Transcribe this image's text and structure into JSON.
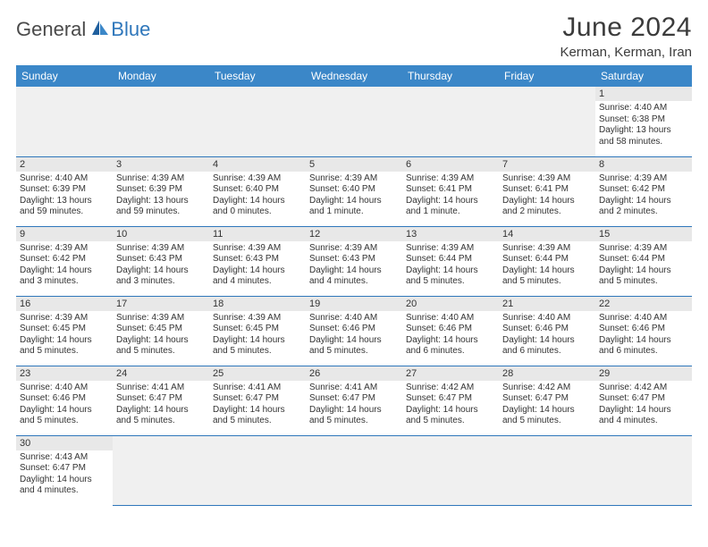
{
  "brand": {
    "general": "General",
    "blue": "Blue"
  },
  "title": "June 2024",
  "location": "Kerman, Kerman, Iran",
  "colors": {
    "header_bg": "#3b87c8",
    "header_text": "#ffffff",
    "row_divider": "#2f77bb",
    "daynum_bg": "#e8e8e8",
    "empty_bg": "#f0f0f0",
    "logo_blue": "#2f77bb",
    "text": "#333333"
  },
  "weekdays": [
    "Sunday",
    "Monday",
    "Tuesday",
    "Wednesday",
    "Thursday",
    "Friday",
    "Saturday"
  ],
  "weeks": [
    [
      null,
      null,
      null,
      null,
      null,
      null,
      {
        "n": "1",
        "sr": "Sunrise: 4:40 AM",
        "ss": "Sunset: 6:38 PM",
        "d1": "Daylight: 13 hours",
        "d2": "and 58 minutes."
      }
    ],
    [
      {
        "n": "2",
        "sr": "Sunrise: 4:40 AM",
        "ss": "Sunset: 6:39 PM",
        "d1": "Daylight: 13 hours",
        "d2": "and 59 minutes."
      },
      {
        "n": "3",
        "sr": "Sunrise: 4:39 AM",
        "ss": "Sunset: 6:39 PM",
        "d1": "Daylight: 13 hours",
        "d2": "and 59 minutes."
      },
      {
        "n": "4",
        "sr": "Sunrise: 4:39 AM",
        "ss": "Sunset: 6:40 PM",
        "d1": "Daylight: 14 hours",
        "d2": "and 0 minutes."
      },
      {
        "n": "5",
        "sr": "Sunrise: 4:39 AM",
        "ss": "Sunset: 6:40 PM",
        "d1": "Daylight: 14 hours",
        "d2": "and 1 minute."
      },
      {
        "n": "6",
        "sr": "Sunrise: 4:39 AM",
        "ss": "Sunset: 6:41 PM",
        "d1": "Daylight: 14 hours",
        "d2": "and 1 minute."
      },
      {
        "n": "7",
        "sr": "Sunrise: 4:39 AM",
        "ss": "Sunset: 6:41 PM",
        "d1": "Daylight: 14 hours",
        "d2": "and 2 minutes."
      },
      {
        "n": "8",
        "sr": "Sunrise: 4:39 AM",
        "ss": "Sunset: 6:42 PM",
        "d1": "Daylight: 14 hours",
        "d2": "and 2 minutes."
      }
    ],
    [
      {
        "n": "9",
        "sr": "Sunrise: 4:39 AM",
        "ss": "Sunset: 6:42 PM",
        "d1": "Daylight: 14 hours",
        "d2": "and 3 minutes."
      },
      {
        "n": "10",
        "sr": "Sunrise: 4:39 AM",
        "ss": "Sunset: 6:43 PM",
        "d1": "Daylight: 14 hours",
        "d2": "and 3 minutes."
      },
      {
        "n": "11",
        "sr": "Sunrise: 4:39 AM",
        "ss": "Sunset: 6:43 PM",
        "d1": "Daylight: 14 hours",
        "d2": "and 4 minutes."
      },
      {
        "n": "12",
        "sr": "Sunrise: 4:39 AM",
        "ss": "Sunset: 6:43 PM",
        "d1": "Daylight: 14 hours",
        "d2": "and 4 minutes."
      },
      {
        "n": "13",
        "sr": "Sunrise: 4:39 AM",
        "ss": "Sunset: 6:44 PM",
        "d1": "Daylight: 14 hours",
        "d2": "and 5 minutes."
      },
      {
        "n": "14",
        "sr": "Sunrise: 4:39 AM",
        "ss": "Sunset: 6:44 PM",
        "d1": "Daylight: 14 hours",
        "d2": "and 5 minutes."
      },
      {
        "n": "15",
        "sr": "Sunrise: 4:39 AM",
        "ss": "Sunset: 6:44 PM",
        "d1": "Daylight: 14 hours",
        "d2": "and 5 minutes."
      }
    ],
    [
      {
        "n": "16",
        "sr": "Sunrise: 4:39 AM",
        "ss": "Sunset: 6:45 PM",
        "d1": "Daylight: 14 hours",
        "d2": "and 5 minutes."
      },
      {
        "n": "17",
        "sr": "Sunrise: 4:39 AM",
        "ss": "Sunset: 6:45 PM",
        "d1": "Daylight: 14 hours",
        "d2": "and 5 minutes."
      },
      {
        "n": "18",
        "sr": "Sunrise: 4:39 AM",
        "ss": "Sunset: 6:45 PM",
        "d1": "Daylight: 14 hours",
        "d2": "and 5 minutes."
      },
      {
        "n": "19",
        "sr": "Sunrise: 4:40 AM",
        "ss": "Sunset: 6:46 PM",
        "d1": "Daylight: 14 hours",
        "d2": "and 5 minutes."
      },
      {
        "n": "20",
        "sr": "Sunrise: 4:40 AM",
        "ss": "Sunset: 6:46 PM",
        "d1": "Daylight: 14 hours",
        "d2": "and 6 minutes."
      },
      {
        "n": "21",
        "sr": "Sunrise: 4:40 AM",
        "ss": "Sunset: 6:46 PM",
        "d1": "Daylight: 14 hours",
        "d2": "and 6 minutes."
      },
      {
        "n": "22",
        "sr": "Sunrise: 4:40 AM",
        "ss": "Sunset: 6:46 PM",
        "d1": "Daylight: 14 hours",
        "d2": "and 6 minutes."
      }
    ],
    [
      {
        "n": "23",
        "sr": "Sunrise: 4:40 AM",
        "ss": "Sunset: 6:46 PM",
        "d1": "Daylight: 14 hours",
        "d2": "and 5 minutes."
      },
      {
        "n": "24",
        "sr": "Sunrise: 4:41 AM",
        "ss": "Sunset: 6:47 PM",
        "d1": "Daylight: 14 hours",
        "d2": "and 5 minutes."
      },
      {
        "n": "25",
        "sr": "Sunrise: 4:41 AM",
        "ss": "Sunset: 6:47 PM",
        "d1": "Daylight: 14 hours",
        "d2": "and 5 minutes."
      },
      {
        "n": "26",
        "sr": "Sunrise: 4:41 AM",
        "ss": "Sunset: 6:47 PM",
        "d1": "Daylight: 14 hours",
        "d2": "and 5 minutes."
      },
      {
        "n": "27",
        "sr": "Sunrise: 4:42 AM",
        "ss": "Sunset: 6:47 PM",
        "d1": "Daylight: 14 hours",
        "d2": "and 5 minutes."
      },
      {
        "n": "28",
        "sr": "Sunrise: 4:42 AM",
        "ss": "Sunset: 6:47 PM",
        "d1": "Daylight: 14 hours",
        "d2": "and 5 minutes."
      },
      {
        "n": "29",
        "sr": "Sunrise: 4:42 AM",
        "ss": "Sunset: 6:47 PM",
        "d1": "Daylight: 14 hours",
        "d2": "and 4 minutes."
      }
    ],
    [
      {
        "n": "30",
        "sr": "Sunrise: 4:43 AM",
        "ss": "Sunset: 6:47 PM",
        "d1": "Daylight: 14 hours",
        "d2": "and 4 minutes."
      },
      null,
      null,
      null,
      null,
      null,
      null
    ]
  ]
}
